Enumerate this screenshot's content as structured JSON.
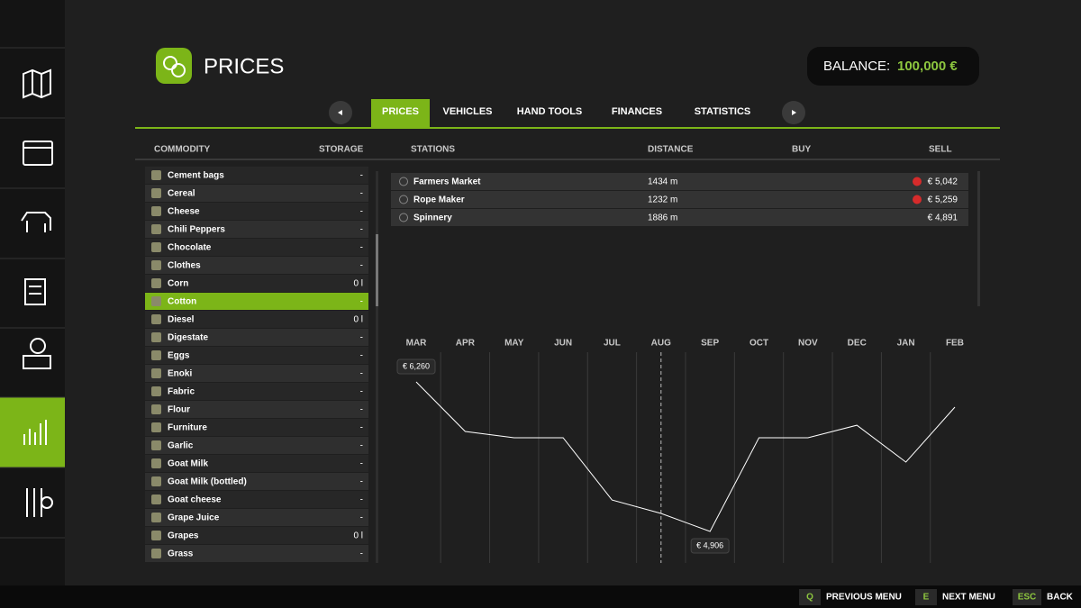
{
  "header": {
    "title": "PRICES",
    "balance_label": "BALANCE:",
    "balance_value": "100,000 €"
  },
  "tabs": [
    "PRICES",
    "VEHICLES",
    "HAND TOOLS",
    "FINANCES",
    "STATISTICS"
  ],
  "active_tab": 0,
  "columns": {
    "commodity": "COMMODITY",
    "storage": "STORAGE",
    "stations": "STATIONS",
    "distance": "DISTANCE",
    "buy": "BUY",
    "sell": "SELL"
  },
  "commodities": [
    {
      "name": "Cement bags",
      "storage": "-"
    },
    {
      "name": "Cereal",
      "storage": "-"
    },
    {
      "name": "Cheese",
      "storage": "-"
    },
    {
      "name": "Chili Peppers",
      "storage": "-"
    },
    {
      "name": "Chocolate",
      "storage": "-"
    },
    {
      "name": "Clothes",
      "storage": "-"
    },
    {
      "name": "Corn",
      "storage": "0 l"
    },
    {
      "name": "Cotton",
      "storage": "-"
    },
    {
      "name": "Diesel",
      "storage": "0 l"
    },
    {
      "name": "Digestate",
      "storage": "-"
    },
    {
      "name": "Eggs",
      "storage": "-"
    },
    {
      "name": "Enoki",
      "storage": "-"
    },
    {
      "name": "Fabric",
      "storage": "-"
    },
    {
      "name": "Flour",
      "storage": "-"
    },
    {
      "name": "Furniture",
      "storage": "-"
    },
    {
      "name": "Garlic",
      "storage": "-"
    },
    {
      "name": "Goat Milk",
      "storage": "-"
    },
    {
      "name": "Goat Milk (bottled)",
      "storage": "-"
    },
    {
      "name": "Goat cheese",
      "storage": "-"
    },
    {
      "name": "Grape Juice",
      "storage": "-"
    },
    {
      "name": "Grapes",
      "storage": "0 l"
    },
    {
      "name": "Grass",
      "storage": "-"
    }
  ],
  "selected_commodity": 7,
  "stations": [
    {
      "name": "Farmers Market",
      "distance": "1434 m",
      "sell": "€ 5,042",
      "trend": "down"
    },
    {
      "name": "Rope Maker",
      "distance": "1232 m",
      "sell": "€ 5,259",
      "trend": "down"
    },
    {
      "name": "Spinnery",
      "distance": "1886 m",
      "sell": "€ 4,891",
      "trend": null
    }
  ],
  "chart_data": {
    "type": "line",
    "categories": [
      "MAR",
      "APR",
      "MAY",
      "JUN",
      "JUL",
      "AUG",
      "SEP",
      "OCT",
      "NOV",
      "DEC",
      "JAN",
      "FEB"
    ],
    "values": [
      6260,
      5811,
      5754,
      5754,
      5191,
      5069,
      4906,
      5754,
      5754,
      5868,
      5534,
      6032
    ],
    "value_labels": [
      "€ 6,260",
      null,
      null,
      null,
      null,
      null,
      "€ 4,906",
      null,
      null,
      null,
      null,
      null
    ],
    "color": "#ffffff",
    "current_index": 5
  },
  "footer": [
    {
      "key": "Q",
      "label": "PREVIOUS MENU"
    },
    {
      "key": "E",
      "label": "NEXT MENU"
    },
    {
      "key": "ESC",
      "label": "BACK"
    }
  ]
}
